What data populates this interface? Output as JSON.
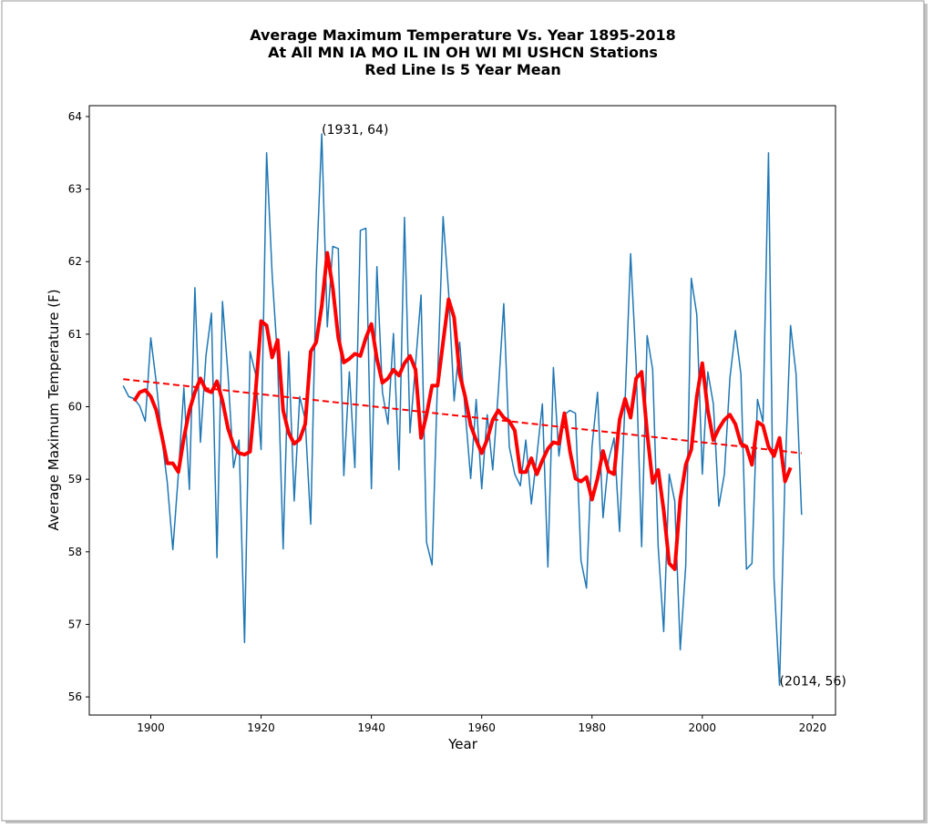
{
  "chart_data": {
    "type": "line",
    "title": [
      "Average Maximum Temperature Vs. Year 1895-2018",
      "At All MN IA MO IL IN OH WI MI USHCN Stations",
      "Red Line Is 5 Year Mean"
    ],
    "xlabel": "Year",
    "ylabel": "Average Maximum Temperature (F)",
    "x": [
      1895,
      1896,
      1897,
      1898,
      1899,
      1900,
      1901,
      1902,
      1903,
      1904,
      1905,
      1906,
      1907,
      1908,
      1909,
      1910,
      1911,
      1912,
      1913,
      1914,
      1915,
      1916,
      1917,
      1918,
      1919,
      1920,
      1921,
      1922,
      1923,
      1924,
      1925,
      1926,
      1927,
      1928,
      1929,
      1930,
      1931,
      1932,
      1933,
      1934,
      1935,
      1936,
      1937,
      1938,
      1939,
      1940,
      1941,
      1942,
      1943,
      1944,
      1945,
      1946,
      1947,
      1948,
      1949,
      1950,
      1951,
      1952,
      1953,
      1954,
      1955,
      1956,
      1957,
      1958,
      1959,
      1960,
      1961,
      1962,
      1963,
      1964,
      1965,
      1966,
      1967,
      1968,
      1969,
      1970,
      1971,
      1972,
      1973,
      1974,
      1975,
      1976,
      1977,
      1978,
      1979,
      1980,
      1981,
      1982,
      1983,
      1984,
      1985,
      1986,
      1987,
      1988,
      1989,
      1990,
      1991,
      1992,
      1993,
      1994,
      1995,
      1996,
      1997,
      1998,
      1999,
      2000,
      2001,
      2002,
      2003,
      2004,
      2005,
      2006,
      2007,
      2008,
      2009,
      2010,
      2011,
      2012,
      2013,
      2014,
      2015,
      2016,
      2017,
      2018
    ],
    "series": [
      {
        "color": "#1f77b4",
        "linewidth": 1.5,
        "linestyle": "solid",
        "values": [
          60.29,
          60.14,
          60.11,
          60.01,
          59.8,
          60.95,
          60.33,
          59.57,
          58.95,
          58.03,
          59.07,
          60.26,
          58.86,
          61.64,
          59.51,
          60.7,
          61.29,
          57.92,
          61.45,
          60.45,
          59.16,
          59.54,
          56.75,
          60.76,
          60.45,
          59.41,
          63.5,
          61.83,
          60.64,
          58.04,
          60.76,
          58.7,
          60.14,
          59.82,
          58.38,
          61.83,
          63.76,
          61.1,
          62.21,
          62.18,
          59.05,
          60.48,
          59.16,
          62.43,
          62.46,
          58.87,
          61.93,
          60.2,
          59.76,
          61.01,
          59.13,
          62.61,
          59.64,
          60.58,
          61.54,
          58.13,
          57.82,
          60.39,
          62.62,
          61.58,
          60.08,
          60.89,
          59.95,
          59.01,
          60.1,
          58.87,
          59.89,
          59.13,
          60.2,
          61.42,
          59.45,
          59.07,
          58.91,
          59.54,
          58.66,
          59.32,
          60.04,
          57.79,
          60.54,
          59.32,
          59.89,
          59.95,
          59.91,
          57.88,
          57.5,
          59.45,
          60.2,
          58.47,
          59.26,
          59.57,
          58.28,
          60.08,
          62.11,
          60.58,
          58.07,
          60.98,
          60.51,
          58.07,
          56.9,
          59.07,
          58.7,
          56.65,
          57.82,
          61.77,
          61.27,
          59.07,
          60.48,
          60.04,
          58.63,
          59.07,
          60.39,
          61.05,
          60.45,
          57.76,
          57.84,
          60.1,
          59.79,
          63.5,
          57.63,
          56.16,
          59.07,
          61.12,
          60.45,
          58.51
        ]
      },
      {
        "color": "#ff0000",
        "linewidth": 4,
        "linestyle": "solid",
        "values": [
          null,
          null,
          60.08,
          60.2,
          60.23,
          60.14,
          59.95,
          59.6,
          59.22,
          59.22,
          59.1,
          59.57,
          59.95,
          60.2,
          60.39,
          60.23,
          60.2,
          60.35,
          60.08,
          59.7,
          59.47,
          59.36,
          59.34,
          59.38,
          60.2,
          61.18,
          61.12,
          60.68,
          60.92,
          59.95,
          59.64,
          59.49,
          59.55,
          59.76,
          60.76,
          60.89,
          61.39,
          62.12,
          61.64,
          60.95,
          60.61,
          60.66,
          60.73,
          60.7,
          60.95,
          61.14,
          60.66,
          60.33,
          60.39,
          60.51,
          60.43,
          60.6,
          60.7,
          60.51,
          59.57,
          59.89,
          60.29,
          60.29,
          60.89,
          61.48,
          61.23,
          60.45,
          60.14,
          59.74,
          59.54,
          59.36,
          59.55,
          59.82,
          59.95,
          59.85,
          59.8,
          59.67,
          59.1,
          59.1,
          59.29,
          59.07,
          59.26,
          59.42,
          59.51,
          59.49,
          59.91,
          59.39,
          59.01,
          58.97,
          59.03,
          58.72,
          59.01,
          59.39,
          59.11,
          59.07,
          59.82,
          60.11,
          59.85,
          60.39,
          60.48,
          59.64,
          58.95,
          59.13,
          58.57,
          57.84,
          57.76,
          58.72,
          59.2,
          59.41,
          60.14,
          60.6,
          59.95,
          59.54,
          59.7,
          59.82,
          59.89,
          59.76,
          59.49,
          59.45,
          59.2,
          59.79,
          59.74,
          59.45,
          59.32,
          59.57,
          58.97,
          59.16,
          null,
          null
        ]
      },
      {
        "color": "#ff0000",
        "linewidth": 2,
        "linestyle": "dashed",
        "x": [
          1895,
          2018
        ],
        "values": [
          60.38,
          59.36
        ]
      }
    ],
    "annotations": [
      {
        "text": "(1931, 64)",
        "x": 1931,
        "y": 63.76
      },
      {
        "text": "(2014, 56)",
        "x": 2014,
        "y": 56.16
      }
    ],
    "xlim": [
      1888.85,
      2024.15
    ],
    "ylim": [
      55.75,
      64.15
    ],
    "xticks": [
      1900,
      1920,
      1940,
      1960,
      1980,
      2000,
      2020
    ],
    "yticks": [
      56,
      57,
      58,
      59,
      60,
      61,
      62,
      63,
      64
    ]
  }
}
